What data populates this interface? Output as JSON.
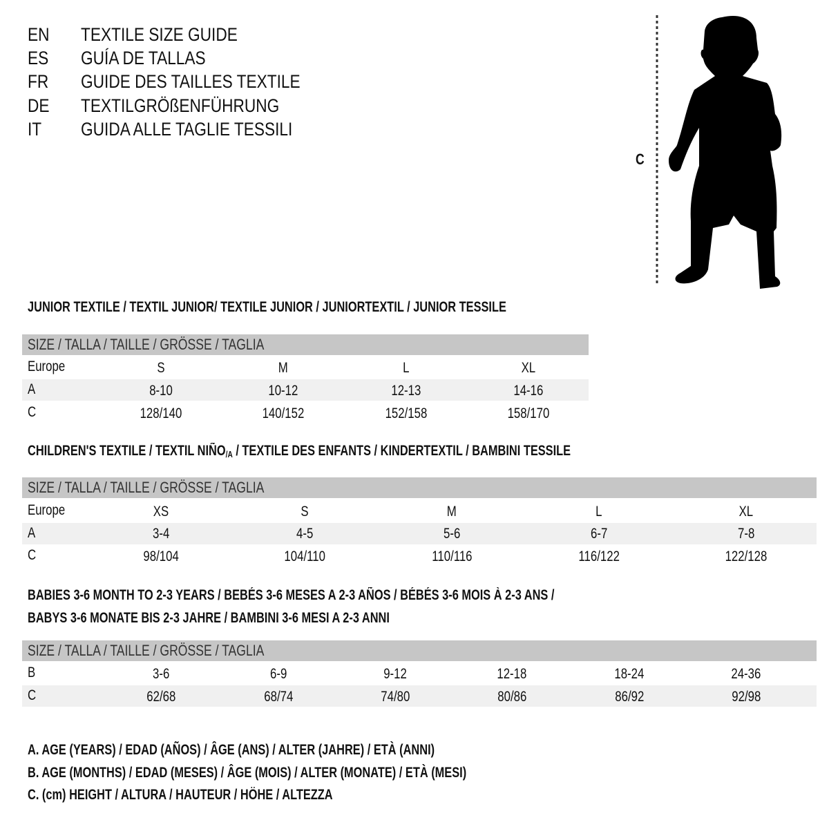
{
  "title_block": [
    {
      "code": "EN",
      "title": "TEXTILE SIZE GUIDE"
    },
    {
      "code": "ES",
      "title": "GUÍA DE TALLAS"
    },
    {
      "code": "FR",
      "title": "GUIDE DES TAILLES TEXTILE"
    },
    {
      "code": "DE",
      "title": "TEXTILGRÖßENFÜHRUNG"
    },
    {
      "code": "IT",
      "title": "GUIDA ALLE TAGLIE TESSILI"
    }
  ],
  "figure": {
    "measure_label": "C",
    "icon": "baby-silhouette-icon"
  },
  "colors": {
    "header_band": "#c6c6c6",
    "alt_row": "#f0f0f0"
  },
  "size_header": "SIZE / TALLA / TAILLE / GRÖSSE / TAGLIA",
  "junior": {
    "heading": "JUNIOR TEXTILE / TEXTIL JUNIOR/ TEXTILE JUNIOR / JUNIORTEXTIL / JUNIOR TESSILE",
    "rows": [
      {
        "label": "Europe",
        "values": [
          "S",
          "M",
          "L",
          "XL"
        ]
      },
      {
        "label": "A",
        "values": [
          "8-10",
          "10-12",
          "12-13",
          "14-16"
        ]
      },
      {
        "label": "C",
        "values": [
          "128/140",
          "140/152",
          "152/158",
          "158/170"
        ]
      }
    ]
  },
  "children": {
    "heading_pre": "CHILDREN'S TEXTILE / TEXTIL NIÑO",
    "heading_sub": "/A",
    "heading_post": " / TEXTILE DES ENFANTS / KINDERTEXTIL / BAMBINI TESSILE",
    "rows": [
      {
        "label": "Europe",
        "values": [
          "XS",
          "S",
          "M",
          "L",
          "XL"
        ]
      },
      {
        "label": "A",
        "values": [
          "3-4",
          "4-5",
          "5-6",
          "6-7",
          "7-8"
        ]
      },
      {
        "label": "C",
        "values": [
          "98/104",
          "104/110",
          "110/116",
          "116/122",
          "122/128"
        ]
      }
    ]
  },
  "babies": {
    "heading_line1": "BABIES 3-6 MONTH TO 2-3 YEARS / BEBÉS 3-6 MESES A 2-3 AÑOS / BÉBÉS 3-6 MOIS À 2-3 ANS /",
    "heading_line2": "BABYS 3-6 MONATE BIS 2-3 JAHRE / BAMBINI 3-6 MESI A 2-3 ANNI",
    "rows": [
      {
        "label": "B",
        "values": [
          "3-6",
          "6-9",
          "9-12",
          "12-18",
          "18-24",
          "24-36"
        ]
      },
      {
        "label": "C",
        "values": [
          "62/68",
          "68/74",
          "74/80",
          "80/86",
          "86/92",
          "92/98"
        ]
      }
    ]
  },
  "legend": [
    "A. AGE (YEARS) / EDAD (AÑOS) / ÂGE (ANS) / ALTER (JAHRE) / ETÀ (ANNI)",
    "B. AGE (MONTHS) / EDAD (MESES) / ÂGE (MOIS) / ALTER (MONATE) / ETÀ (MESI)",
    "C. (cm) HEIGHT / ALTURA / HAUTEUR / HÖHE / ALTEZZA"
  ]
}
